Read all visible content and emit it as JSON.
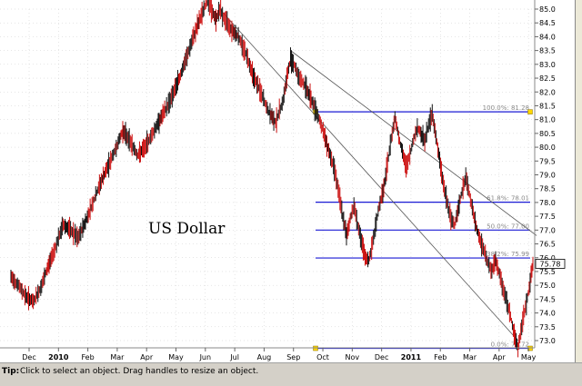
{
  "chart_data": {
    "type": "line",
    "title": "US Dollar",
    "y_ticks": [
      "85.0",
      "84.5",
      "84.0",
      "83.5",
      "83.0",
      "82.5",
      "82.0",
      "81.5",
      "81.0",
      "80.5",
      "80.0",
      "79.5",
      "79.0",
      "78.5",
      "78.0",
      "77.5",
      "77.0",
      "76.5",
      "76.0",
      "75.5",
      "75.0",
      "74.5",
      "74.0",
      "73.5",
      "73.0"
    ],
    "ylim": [
      72.7,
      85.5
    ],
    "x_ticks": [
      "Dec",
      "2010",
      "Feb",
      "Mar",
      "Apr",
      "May",
      "Jun",
      "Jul",
      "Aug",
      "Sep",
      "Oct",
      "Nov",
      "Dec",
      "2011",
      "Feb",
      "Mar",
      "Apr",
      "May"
    ],
    "x_tick_bold": [
      "2010",
      "2011"
    ],
    "last_price": "75.78",
    "fib_levels": [
      {
        "label": "100.0%: 81.28",
        "value": 81.28
      },
      {
        "label": "61.8%: 78.01",
        "value": 78.01
      },
      {
        "label": "50.0%: 77.00",
        "value": 77.0
      },
      {
        "label": "38.2%: 75.99",
        "value": 75.99
      },
      {
        "label": "0.0%: 72.72",
        "value": 72.72
      }
    ],
    "price_path": [
      [
        0,
        75.3
      ],
      [
        4,
        75.0
      ],
      [
        8,
        74.6
      ],
      [
        12,
        74.4
      ],
      [
        16,
        74.9
      ],
      [
        20,
        75.7
      ],
      [
        24,
        76.4
      ],
      [
        28,
        77.2
      ],
      [
        32,
        77.0
      ],
      [
        36,
        76.7
      ],
      [
        40,
        77.3
      ],
      [
        44,
        78.0
      ],
      [
        48,
        78.7
      ],
      [
        52,
        79.3
      ],
      [
        56,
        79.9
      ],
      [
        60,
        80.6
      ],
      [
        64,
        80.2
      ],
      [
        68,
        79.7
      ],
      [
        72,
        80.0
      ],
      [
        76,
        80.5
      ],
      [
        80,
        81.0
      ],
      [
        84,
        81.5
      ],
      [
        88,
        82.1
      ],
      [
        92,
        82.8
      ],
      [
        96,
        83.6
      ],
      [
        100,
        84.4
      ],
      [
        104,
        85.1
      ],
      [
        106,
        85.3
      ],
      [
        108,
        84.9
      ],
      [
        110,
        84.6
      ],
      [
        112,
        85.0
      ],
      [
        114,
        84.7
      ],
      [
        118,
        84.3
      ],
      [
        122,
        84.0
      ],
      [
        126,
        83.4
      ],
      [
        130,
        82.6
      ],
      [
        134,
        82.0
      ],
      [
        138,
        81.3
      ],
      [
        142,
        80.9
      ],
      [
        146,
        81.7
      ],
      [
        148,
        82.5
      ],
      [
        150,
        83.2
      ],
      [
        152,
        83.0
      ],
      [
        154,
        82.6
      ],
      [
        158,
        82.2
      ],
      [
        162,
        81.6
      ],
      [
        166,
        80.9
      ],
      [
        170,
        80.0
      ],
      [
        174,
        79.1
      ],
      [
        176,
        78.3
      ],
      [
        178,
        77.5
      ],
      [
        180,
        76.8
      ],
      [
        182,
        77.4
      ],
      [
        184,
        77.9
      ],
      [
        186,
        77.2
      ],
      [
        188,
        76.6
      ],
      [
        190,
        76.0
      ],
      [
        192,
        75.9
      ],
      [
        194,
        76.5
      ],
      [
        196,
        77.3
      ],
      [
        198,
        78.0
      ],
      [
        200,
        78.5
      ],
      [
        202,
        79.4
      ],
      [
        204,
        80.3
      ],
      [
        206,
        81.1
      ],
      [
        208,
        80.4
      ],
      [
        210,
        79.8
      ],
      [
        212,
        79.3
      ],
      [
        214,
        79.7
      ],
      [
        216,
        80.3
      ],
      [
        218,
        80.7
      ],
      [
        220,
        80.5
      ],
      [
        222,
        80.2
      ],
      [
        224,
        80.8
      ],
      [
        226,
        81.2
      ],
      [
        228,
        80.4
      ],
      [
        230,
        79.5
      ],
      [
        232,
        78.7
      ],
      [
        234,
        78.0
      ],
      [
        236,
        77.4
      ],
      [
        238,
        77.2
      ],
      [
        240,
        77.8
      ],
      [
        242,
        78.4
      ],
      [
        244,
        78.9
      ],
      [
        246,
        78.3
      ],
      [
        248,
        77.6
      ],
      [
        250,
        77.0
      ],
      [
        252,
        76.6
      ],
      [
        254,
        76.2
      ],
      [
        256,
        75.8
      ],
      [
        258,
        75.5
      ],
      [
        260,
        75.9
      ],
      [
        262,
        75.4
      ],
      [
        264,
        74.9
      ],
      [
        266,
        74.4
      ],
      [
        268,
        73.9
      ],
      [
        270,
        73.2
      ],
      [
        272,
        72.72
      ],
      [
        274,
        73.5
      ],
      [
        276,
        74.2
      ],
      [
        278,
        74.9
      ],
      [
        280,
        75.78
      ]
    ]
  },
  "colors": {
    "price": "#cc1111",
    "price_dark": "#111111",
    "fib_line": "#1a1ad4",
    "trend_line": "#555555",
    "grid": "#cccccc",
    "handle": "#ffd700",
    "price_label_bg": "#ffffff",
    "tip_bg": "#d4d0c8"
  },
  "tip": {
    "key": "Tip:",
    "text": "Click to select an object. Drag handles to resize an object."
  }
}
